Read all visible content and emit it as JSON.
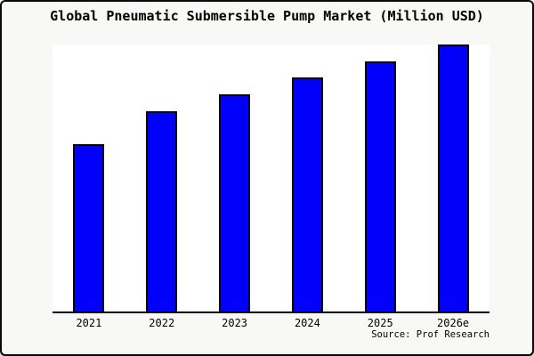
{
  "window": {
    "background": "#f8f8f6",
    "border_color": "#0a0a0a"
  },
  "chart_data": {
    "type": "bar",
    "title": "Global Pneumatic Submersible Pump Market (Million USD)",
    "categories": [
      "2021",
      "2022",
      "2023",
      "2024",
      "2025",
      "2026e"
    ],
    "values": [
      188,
      225,
      244,
      263,
      281,
      300
    ],
    "value_scale": "relative bar heights; y-axis has no visible scale or tick labels",
    "xlabel": "",
    "ylabel": "",
    "ylim": [
      0,
      300
    ],
    "grid": false,
    "legend": false,
    "plot_background": "#ffffff",
    "bar_color": "#0000fb",
    "bar_border_color": "#000000",
    "axis_color": "#000000"
  },
  "footer": {
    "source": "Source: Prof Research"
  }
}
